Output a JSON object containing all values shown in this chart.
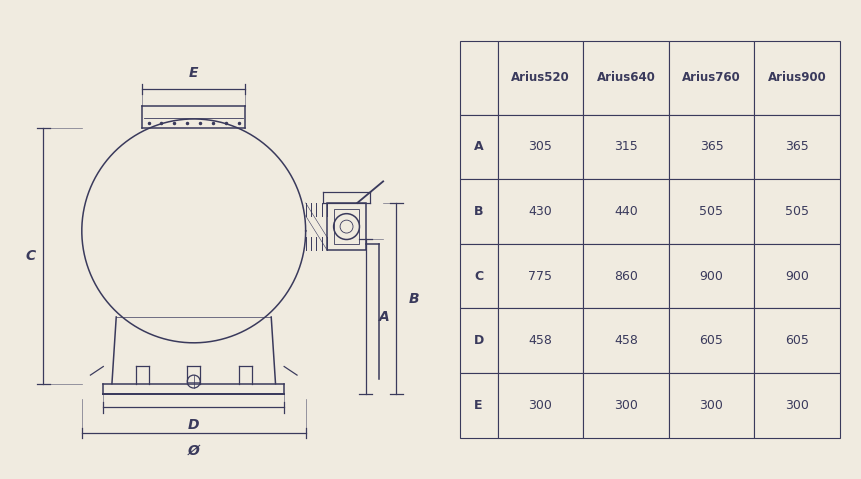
{
  "background_color": "#f0ebe0",
  "line_color": "#3a3a5c",
  "dim_color": "#3a3a5c",
  "table_border_color": "#3a3a5c",
  "table_header_bold": true,
  "table_columns": [
    "",
    "Arius520",
    "Arius640",
    "Arius760",
    "Arius900"
  ],
  "table_rows": [
    [
      "A",
      "305",
      "315",
      "365",
      "365"
    ],
    [
      "B",
      "430",
      "440",
      "505",
      "505"
    ],
    [
      "C",
      "775",
      "860",
      "900",
      "900"
    ],
    [
      "D",
      "458",
      "458",
      "605",
      "605"
    ],
    [
      "E",
      "300",
      "300",
      "300",
      "300"
    ]
  ]
}
